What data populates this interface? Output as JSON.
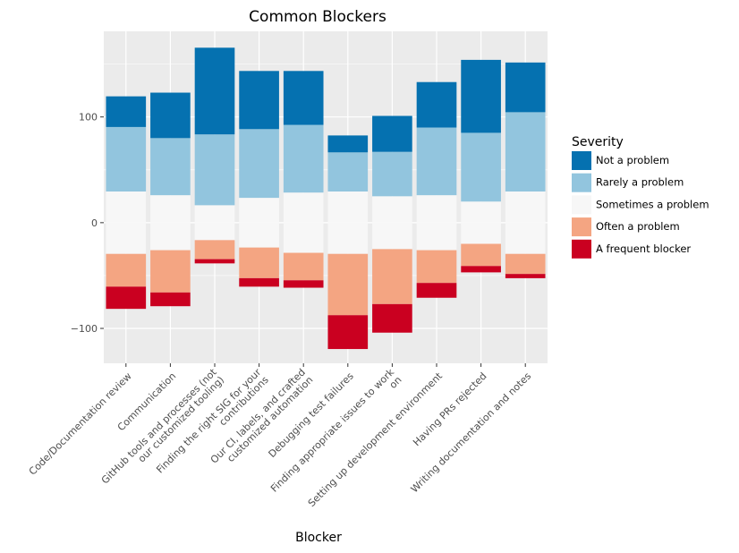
{
  "chart_data": {
    "type": "bar",
    "stacked": "diverging",
    "title": "Common Blockers",
    "xlabel": "Blocker",
    "ylabel": "",
    "ylim": [
      -133,
      181
    ],
    "yticks": [
      -100,
      0,
      100
    ],
    "grid": true,
    "legend_position": "right",
    "legend_title": "Severity",
    "categories": [
      [
        "Code/Documentation review"
      ],
      [
        "Communication"
      ],
      [
        "GitHub tools and processes (not",
        "our customized tooling)"
      ],
      [
        "Finding the right SIG for your",
        "contributions"
      ],
      [
        "Our CI, labels, and crafted",
        "customized automation"
      ],
      [
        "Debugging test failures"
      ],
      [
        "Finding appropriate issues to work",
        "on"
      ],
      [
        "Setting up development environment"
      ],
      [
        "Having PRs rejected"
      ],
      [
        "Writing documentation and notes"
      ]
    ],
    "series": [
      {
        "name": "Not a problem",
        "color": "#0571b0",
        "values": [
          29,
          43,
          82,
          55,
          51,
          16,
          34,
          43,
          69,
          47
        ]
      },
      {
        "name": "Rarely a problem",
        "color": "#92c5de",
        "values": [
          61,
          54,
          67,
          65,
          64,
          37,
          42,
          64,
          65,
          75
        ]
      },
      {
        "name": "Sometimes a problem",
        "color": "#f7f7f7",
        "values": [
          59,
          52,
          33,
          47,
          57,
          59,
          50,
          52,
          40,
          59
        ]
      },
      {
        "name": "Often a problem",
        "color": "#f4a582",
        "values": [
          31,
          40,
          18,
          29,
          26,
          58,
          52,
          31,
          21,
          19
        ]
      },
      {
        "name": "A frequent blocker",
        "color": "#ca0020",
        "values": [
          21,
          13,
          4,
          8,
          7,
          32,
          27,
          14,
          6,
          4
        ]
      }
    ]
  }
}
